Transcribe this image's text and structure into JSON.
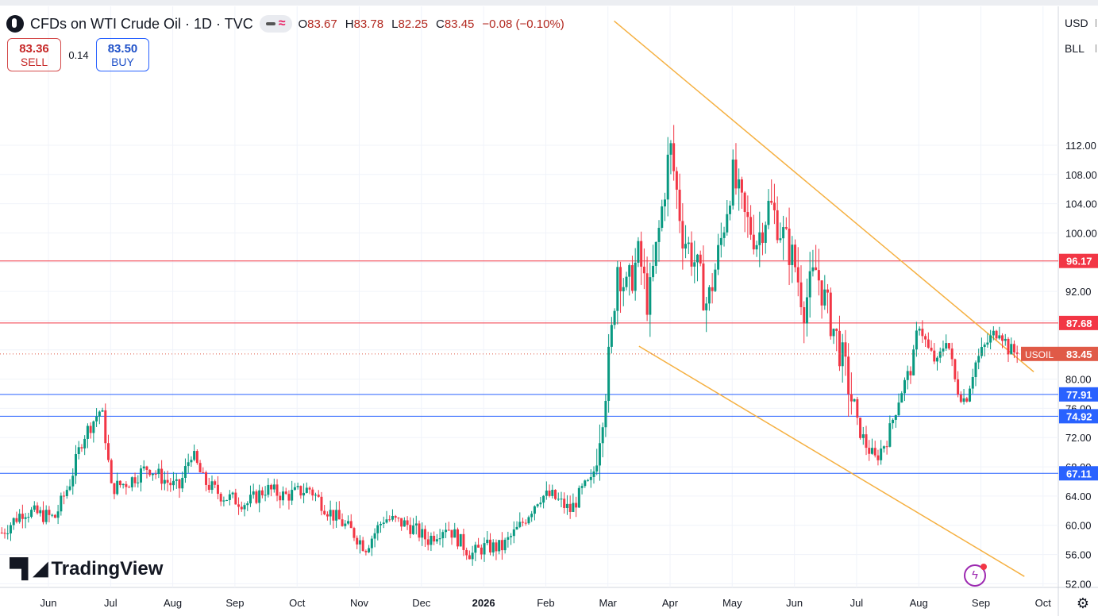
{
  "header": {
    "title": "CFDs on WTI Crude Oil · 1D · TVC",
    "ohlc": [
      {
        "k": "O",
        "v": "83.67"
      },
      {
        "k": "H",
        "v": "83.78"
      },
      {
        "k": "L",
        "v": "82.25"
      },
      {
        "k": "C",
        "v": "83.45"
      },
      {
        "k": "",
        "v": "−0.08 (−0.10%)"
      }
    ]
  },
  "trade": {
    "sell_price": "83.36",
    "sell_label": "SELL",
    "spread": "0.14",
    "buy_price": "83.50",
    "buy_label": "BUY"
  },
  "axis_controls": {
    "currency": "USD",
    "unit": "BLL"
  },
  "branding": {
    "name": "TradingView"
  },
  "colors": {
    "up": "#089981",
    "down": "#f23645",
    "resistance_line": "#f23645",
    "support_line": "#2962ff",
    "channel_line": "#f5b041",
    "price_badge": "#e05a47"
  },
  "icons": {
    "alert": "bolt-icon",
    "settings": "gear-icon",
    "logo": "tradingview-logo-icon"
  },
  "chart_data": {
    "type": "candlestick",
    "symbol": "USOIL",
    "last_price": 83.45,
    "ylim": [
      51.5,
      131
    ],
    "y_ticks": [
      52,
      56,
      60,
      64,
      68,
      72,
      76,
      80,
      84,
      88,
      92,
      96,
      100,
      104,
      108,
      112
    ],
    "y_tick_labels": [
      "52.00",
      "56.00",
      "60.00",
      "64.00",
      "68.00",
      "72.00",
      "76.00",
      "80.00",
      "84.00",
      "88.00",
      "92.00",
      "96.00",
      "100.00",
      "104.00",
      "108.00",
      "112.00"
    ],
    "x_labels": [
      "Jun",
      "Jul",
      "Aug",
      "Sep",
      "Oct",
      "Nov",
      "Dec",
      "2026",
      "Feb",
      "Mar",
      "Apr",
      "May",
      "Jun",
      "Jul",
      "Aug",
      "Sep",
      "Oct"
    ],
    "horizontal_levels": [
      {
        "value": 96.17,
        "label": "96.17",
        "kind": "resistance"
      },
      {
        "value": 87.68,
        "label": "87.68",
        "kind": "resistance"
      },
      {
        "value": 77.91,
        "label": "77.91",
        "kind": "support"
      },
      {
        "value": 74.92,
        "label": "74.92",
        "kind": "support"
      },
      {
        "value": 67.11,
        "label": "67.11",
        "kind": "support"
      }
    ],
    "channel": {
      "upper": [
        {
          "month": 9.1,
          "price": 129
        },
        {
          "month": 15.85,
          "price": 81.0
        }
      ],
      "lower": [
        {
          "month": 9.5,
          "price": 84.5
        },
        {
          "month": 15.7,
          "price": 53.0
        }
      ]
    },
    "price_path": [
      {
        "month": -0.75,
        "price": 59
      },
      {
        "month": -0.4,
        "price": 62
      },
      {
        "month": 0.1,
        "price": 61
      },
      {
        "month": 0.35,
        "price": 66
      },
      {
        "month": 0.55,
        "price": 72
      },
      {
        "month": 0.7,
        "price": 74
      },
      {
        "month": 0.85,
        "price": 76
      },
      {
        "month": 0.95,
        "price": 70
      },
      {
        "month": 1.0,
        "price": 65
      },
      {
        "month": 1.3,
        "price": 66
      },
      {
        "month": 1.6,
        "price": 68
      },
      {
        "month": 1.9,
        "price": 66
      },
      {
        "month": 2.1,
        "price": 65
      },
      {
        "month": 2.3,
        "price": 70
      },
      {
        "month": 2.5,
        "price": 66
      },
      {
        "month": 2.8,
        "price": 64
      },
      {
        "month": 3.2,
        "price": 63
      },
      {
        "month": 3.5,
        "price": 65
      },
      {
        "month": 3.8,
        "price": 64
      },
      {
        "month": 4.2,
        "price": 65
      },
      {
        "month": 4.5,
        "price": 62
      },
      {
        "month": 4.9,
        "price": 59
      },
      {
        "month": 5.1,
        "price": 57
      },
      {
        "month": 5.4,
        "price": 61
      },
      {
        "month": 5.8,
        "price": 60
      },
      {
        "month": 6.1,
        "price": 58
      },
      {
        "month": 6.4,
        "price": 60
      },
      {
        "month": 6.8,
        "price": 56
      },
      {
        "month": 7.0,
        "price": 57
      },
      {
        "month": 7.3,
        "price": 57
      },
      {
        "month": 7.6,
        "price": 60
      },
      {
        "month": 7.9,
        "price": 64
      },
      {
        "month": 8.1,
        "price": 64
      },
      {
        "month": 8.4,
        "price": 62
      },
      {
        "month": 8.6,
        "price": 65
      },
      {
        "month": 8.75,
        "price": 66
      },
      {
        "month": 8.85,
        "price": 72
      },
      {
        "month": 8.95,
        "price": 78
      },
      {
        "month": 9.05,
        "price": 85
      },
      {
        "month": 9.15,
        "price": 96
      },
      {
        "month": 9.3,
        "price": 92
      },
      {
        "month": 9.5,
        "price": 97
      },
      {
        "month": 9.65,
        "price": 90
      },
      {
        "month": 9.85,
        "price": 102
      },
      {
        "month": 10.0,
        "price": 112
      },
      {
        "month": 10.2,
        "price": 100
      },
      {
        "month": 10.4,
        "price": 96
      },
      {
        "month": 10.6,
        "price": 90
      },
      {
        "month": 10.8,
        "price": 98
      },
      {
        "month": 11.0,
        "price": 108
      },
      {
        "month": 11.2,
        "price": 102
      },
      {
        "month": 11.4,
        "price": 99
      },
      {
        "month": 11.6,
        "price": 104
      },
      {
        "month": 11.8,
        "price": 100
      },
      {
        "month": 12.0,
        "price": 96
      },
      {
        "month": 12.15,
        "price": 90
      },
      {
        "month": 12.35,
        "price": 95
      },
      {
        "month": 12.55,
        "price": 89
      },
      {
        "month": 12.7,
        "price": 85
      },
      {
        "month": 12.85,
        "price": 80
      },
      {
        "month": 13.0,
        "price": 74
      },
      {
        "month": 13.15,
        "price": 71
      },
      {
        "month": 13.3,
        "price": 69
      },
      {
        "month": 13.5,
        "price": 72
      },
      {
        "month": 13.7,
        "price": 78
      },
      {
        "month": 13.9,
        "price": 82
      },
      {
        "month": 14.0,
        "price": 88
      },
      {
        "month": 14.15,
        "price": 84
      },
      {
        "month": 14.3,
        "price": 82
      },
      {
        "month": 14.45,
        "price": 86
      },
      {
        "month": 14.6,
        "price": 79
      },
      {
        "month": 14.75,
        "price": 77
      },
      {
        "month": 14.9,
        "price": 82
      },
      {
        "month": 15.1,
        "price": 85
      },
      {
        "month": 15.3,
        "price": 87
      },
      {
        "month": 15.45,
        "price": 84
      },
      {
        "month": 15.6,
        "price": 83.45
      }
    ]
  }
}
